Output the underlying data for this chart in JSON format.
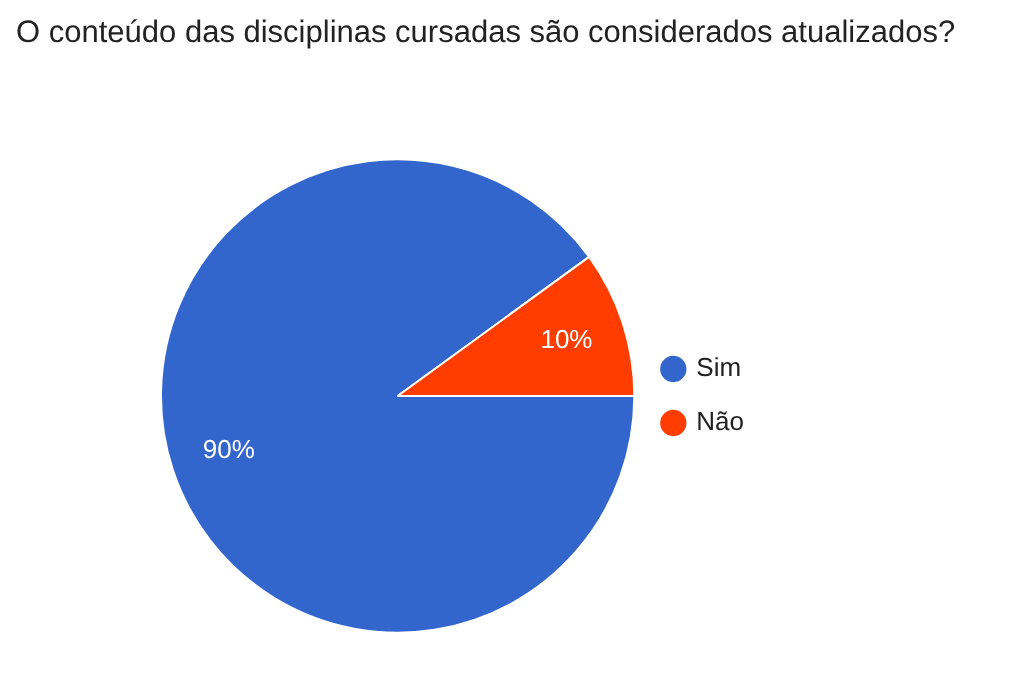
{
  "chart_data": {
    "type": "pie",
    "title": "O conteúdo das disciplinas cursadas são considerados atualizados?",
    "categories": [
      "Sim",
      "Não"
    ],
    "values": [
      90,
      10
    ],
    "value_labels": [
      "90%",
      "10%"
    ],
    "colors": [
      "#3366cc",
      "#ff3d00"
    ],
    "legend": "right"
  }
}
